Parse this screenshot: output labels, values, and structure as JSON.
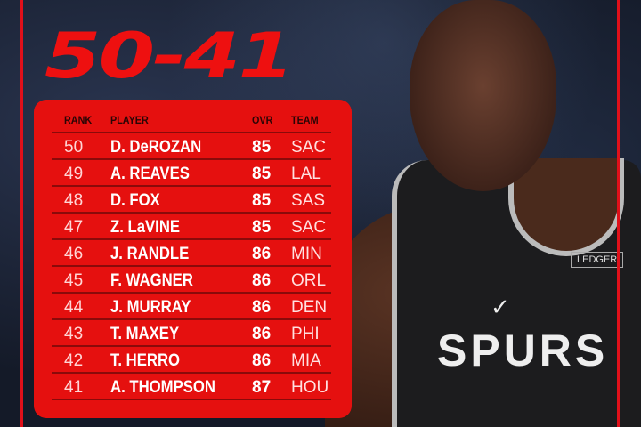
{
  "title": "50-41",
  "colors": {
    "accent": "#e5100f",
    "title": "#ee1010",
    "header_text": "#2a0505"
  },
  "table": {
    "headers": {
      "rank": "RANK",
      "player": "PLAYER",
      "ovr": "OVR",
      "team": "TEAM"
    },
    "rows": [
      {
        "rank": "50",
        "player": "D. DeROZAN",
        "ovr": "85",
        "team": "SAC"
      },
      {
        "rank": "49",
        "player": "A. REAVES",
        "ovr": "85",
        "team": "LAL"
      },
      {
        "rank": "48",
        "player": "D. FOX",
        "ovr": "85",
        "team": "SAS"
      },
      {
        "rank": "47",
        "player": "Z. LaVINE",
        "ovr": "85",
        "team": "SAC"
      },
      {
        "rank": "46",
        "player": "J. RANDLE",
        "ovr": "86",
        "team": "MIN"
      },
      {
        "rank": "45",
        "player": "F. WAGNER",
        "ovr": "86",
        "team": "ORL"
      },
      {
        "rank": "44",
        "player": "J. MURRAY",
        "ovr": "86",
        "team": "DEN"
      },
      {
        "rank": "43",
        "player": "T. MAXEY",
        "ovr": "86",
        "team": "PHI"
      },
      {
        "rank": "42",
        "player": "T. HERRO",
        "ovr": "86",
        "team": "MIA"
      },
      {
        "rank": "41",
        "player": "A. THOMPSON",
        "ovr": "87",
        "team": "HOU"
      }
    ]
  },
  "photo": {
    "jersey_text": "SPURS",
    "patch_text": "LEDGER",
    "icons": [
      "nike-swoosh-icon"
    ]
  }
}
